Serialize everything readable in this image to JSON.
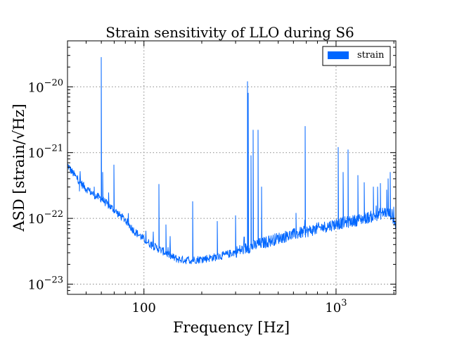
{
  "chart_data": {
    "type": "line",
    "title": "Strain sensitivity of LLO during S6",
    "xlabel": "Frequency [Hz]",
    "ylabel": "ASD [strain/√Hz]",
    "x_scale": "log",
    "y_scale": "log",
    "xlim": [
      40,
      2048
    ],
    "ylim": [
      7e-24,
      5e-20
    ],
    "x_ticks": [
      {
        "value": 100,
        "label": "100"
      },
      {
        "value": 1000,
        "label": "10^3"
      }
    ],
    "y_ticks": [
      {
        "value": 1e-23,
        "label": "10^-23"
      },
      {
        "value": 1e-22,
        "label": "10^-22"
      },
      {
        "value": 1e-21,
        "label": "10^-21"
      },
      {
        "value": 1e-20,
        "label": "10^-20"
      }
    ],
    "grid": true,
    "legend_position": "top-right",
    "series": [
      {
        "name": "strain",
        "color": "#0066ff",
        "baseline": [
          [
            40,
            6.5e-22
          ],
          [
            42,
            5.2e-22
          ],
          [
            45,
            4e-22
          ],
          [
            48,
            3.2e-22
          ],
          [
            52,
            2.6e-22
          ],
          [
            56,
            2.2e-22
          ],
          [
            60,
            2e-22
          ],
          [
            65,
            1.6e-22
          ],
          [
            70,
            1.35e-22
          ],
          [
            75,
            1.1e-22
          ],
          [
            80,
            9.5e-23
          ],
          [
            85,
            7.5e-23
          ],
          [
            90,
            6.2e-23
          ],
          [
            95,
            5.5e-23
          ],
          [
            100,
            4.8e-23
          ],
          [
            110,
            3.9e-23
          ],
          [
            120,
            3.4e-23
          ],
          [
            130,
            3e-23
          ],
          [
            140,
            2.6e-23
          ],
          [
            150,
            2.4e-23
          ],
          [
            170,
            2.3e-23
          ],
          [
            200,
            2.4e-23
          ],
          [
            240,
            2.6e-23
          ],
          [
            280,
            2.9e-23
          ],
          [
            320,
            3.3e-23
          ],
          [
            360,
            3.7e-23
          ],
          [
            400,
            4.1e-23
          ],
          [
            450,
            4.5e-23
          ],
          [
            500,
            5e-23
          ],
          [
            600,
            5.7e-23
          ],
          [
            700,
            6.3e-23
          ],
          [
            800,
            7e-23
          ],
          [
            900,
            7.6e-23
          ],
          [
            1000,
            8.2e-23
          ],
          [
            1200,
            9e-23
          ],
          [
            1400,
            1e-22
          ],
          [
            1600,
            1.1e-22
          ],
          [
            1800,
            1.25e-22
          ],
          [
            1950,
            1.15e-22
          ],
          [
            2048,
            8e-23
          ]
        ],
        "peaks": [
          [
            46,
            2.6e-22
          ],
          [
            50,
            2.5e-22
          ],
          [
            55,
            3e-22
          ],
          [
            60,
            2.8e-20
          ],
          [
            61,
            5e-22
          ],
          [
            70,
            6.5e-22
          ],
          [
            120,
            3.3e-22
          ],
          [
            130,
            8e-23
          ],
          [
            180,
            1.8e-22
          ],
          [
            240,
            9e-23
          ],
          [
            300,
            1.1e-22
          ],
          [
            345,
            1.2e-20
          ],
          [
            350,
            8e-21
          ],
          [
            360,
            9e-22
          ],
          [
            370,
            2.2e-21
          ],
          [
            393,
            2.2e-21
          ],
          [
            410,
            3e-22
          ],
          [
            620,
            1.2e-22
          ],
          [
            690,
            2.5e-21
          ],
          [
            1030,
            1.2e-21
          ],
          [
            1090,
            5e-22
          ],
          [
            1150,
            1.1e-21
          ],
          [
            1300,
            4.5e-22
          ],
          [
            1400,
            3.5e-22
          ],
          [
            1560,
            3e-22
          ],
          [
            1650,
            3e-22
          ],
          [
            1700,
            3.4e-22
          ],
          [
            1830,
            2.7e-22
          ],
          [
            1860,
            4e-22
          ],
          [
            1920,
            5e-22
          ]
        ]
      }
    ]
  }
}
